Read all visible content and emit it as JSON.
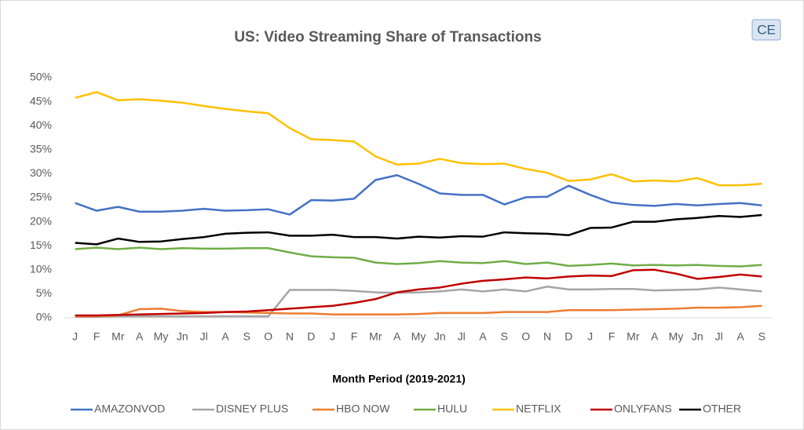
{
  "chart_data": {
    "type": "line",
    "title": "US:  Video Streaming Share of Transactions",
    "logo": "CE",
    "xlabel": "Month Period (2019-2021)",
    "categories": [
      "J",
      "F",
      "Mr",
      "A",
      "My",
      "Jn",
      "Jl",
      "A",
      "S",
      "O",
      "N",
      "D",
      "J",
      "F",
      "Mr",
      "A",
      "My",
      "Jn",
      "Jl",
      "A",
      "S",
      "O",
      "N",
      "D",
      "J",
      "F",
      "Mr",
      "A",
      "My",
      "Jn",
      "Jl",
      "A",
      "S"
    ],
    "ylim": [
      0,
      50
    ],
    "yticks": [
      {
        "value": 0,
        "label": "0%"
      },
      {
        "value": 5,
        "label": "5%"
      },
      {
        "value": 10,
        "label": "10%"
      },
      {
        "value": 15,
        "label": "15%"
      },
      {
        "value": 20,
        "label": "20%"
      },
      {
        "value": 25,
        "label": "25%"
      },
      {
        "value": 30,
        "label": "30%"
      },
      {
        "value": 35,
        "label": "35%"
      },
      {
        "value": 40,
        "label": "40%"
      },
      {
        "value": 45,
        "label": "45%"
      },
      {
        "value": 50,
        "label": "50%"
      }
    ],
    "grid": false,
    "legend": "bottom",
    "series": [
      {
        "name": "AMAZONVOD",
        "color": "#4472c4",
        "values": [
          23.9,
          22.3,
          23.1,
          22.1,
          22.1,
          22.3,
          22.7,
          22.3,
          22.4,
          22.6,
          21.5,
          24.5,
          24.4,
          24.8,
          28.7,
          29.7,
          27.9,
          25.9,
          25.6,
          25.6,
          23.6,
          25.1,
          25.2,
          27.5,
          25.6,
          24,
          23.5,
          23.3,
          23.7,
          23.4,
          23.7,
          23.9,
          23.4
        ]
      },
      {
        "name": "DISNEY PLUS",
        "color": "#a5a5a5",
        "values": [
          0.2,
          0.2,
          0.3,
          0.3,
          0.3,
          0.3,
          0.3,
          0.3,
          0.3,
          0.3,
          5.8,
          5.8,
          5.8,
          5.6,
          5.3,
          5.2,
          5.3,
          5.5,
          5.9,
          5.5,
          5.9,
          5.5,
          6.5,
          5.9,
          5.9,
          6,
          6,
          5.7,
          5.8,
          5.9,
          6.3,
          5.9,
          5.5
        ]
      },
      {
        "name": "HBO NOW",
        "color": "#ed7d31",
        "values": [
          0.3,
          0.3,
          0.5,
          1.8,
          1.9,
          1.4,
          1.2,
          1.2,
          1.1,
          1,
          0.9,
          0.9,
          0.7,
          0.7,
          0.7,
          0.7,
          0.8,
          1,
          1,
          1,
          1.2,
          1.2,
          1.2,
          1.6,
          1.6,
          1.6,
          1.7,
          1.8,
          1.9,
          2.1,
          2.1,
          2.2,
          2.5
        ]
      },
      {
        "name": "HULU",
        "color": "#70ad47",
        "values": [
          14.3,
          14.6,
          14.3,
          14.6,
          14.3,
          14.5,
          14.4,
          14.4,
          14.5,
          14.5,
          13.6,
          12.8,
          12.6,
          12.5,
          11.5,
          11.2,
          11.4,
          11.8,
          11.5,
          11.4,
          11.8,
          11.2,
          11.5,
          10.8,
          11,
          11.3,
          10.9,
          11,
          10.9,
          11,
          10.8,
          10.7,
          11
        ]
      },
      {
        "name": "NETFLIX",
        "color": "#ffc000",
        "values": [
          45.8,
          47,
          45.3,
          45.5,
          45.2,
          44.8,
          44.1,
          43.5,
          43,
          42.6,
          39.5,
          37.2,
          37,
          36.7,
          33.6,
          31.9,
          32.1,
          33.1,
          32.2,
          32,
          32.1,
          31,
          30.2,
          28.5,
          28.8,
          29.9,
          28.4,
          28.6,
          28.4,
          29.1,
          27.6,
          27.6,
          27.9
        ]
      },
      {
        "name": "ONLYFANS",
        "color": "#c00000",
        "values": [
          0.5,
          0.5,
          0.6,
          0.7,
          0.8,
          0.9,
          1,
          1.2,
          1.3,
          1.6,
          1.9,
          2.2,
          2.5,
          3.1,
          3.9,
          5.3,
          5.9,
          6.3,
          7.1,
          7.7,
          8,
          8.4,
          8.2,
          8.6,
          8.8,
          8.7,
          9.9,
          10,
          9.2,
          8.1,
          8.5,
          9,
          8.6
        ]
      },
      {
        "name": "OTHER",
        "color": "#000000",
        "values": [
          15.6,
          15.3,
          16.5,
          15.8,
          15.9,
          16.4,
          16.8,
          17.5,
          17.7,
          17.8,
          17.1,
          17.1,
          17.3,
          16.8,
          16.8,
          16.5,
          16.9,
          16.7,
          17,
          16.9,
          17.8,
          17.6,
          17.5,
          17.2,
          18.7,
          18.8,
          20,
          20,
          20.5,
          20.8,
          21.2,
          21,
          21.4
        ]
      }
    ]
  }
}
